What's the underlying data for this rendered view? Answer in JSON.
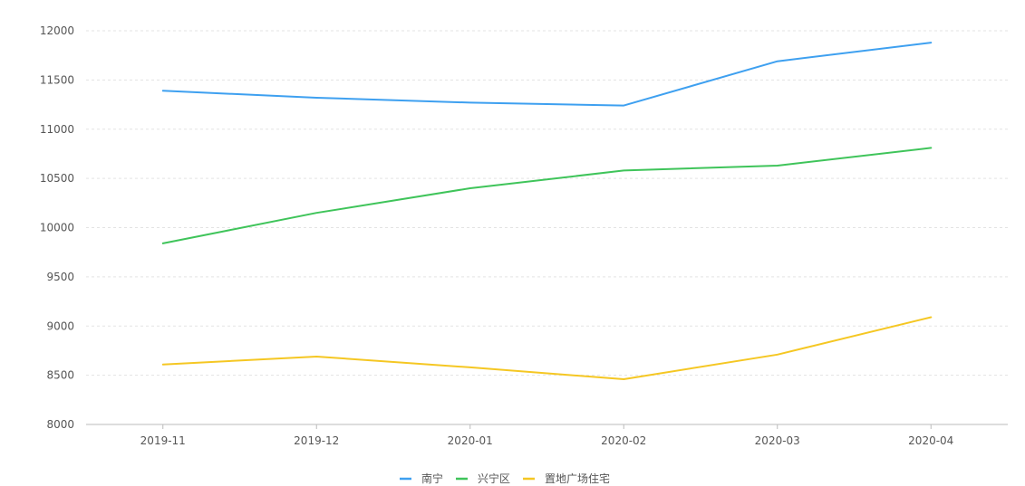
{
  "chart_data": {
    "type": "line",
    "categories": [
      "2019-11",
      "2019-12",
      "2020-01",
      "2020-02",
      "2020-03",
      "2020-04"
    ],
    "yticks": [
      "12000",
      "11500",
      "11000",
      "10500",
      "10000",
      "9500",
      "9000",
      "8500",
      "8000"
    ],
    "ylim": [
      8000,
      12000
    ],
    "grid": true,
    "legend_position": "bottom-center",
    "series": [
      {
        "name": "南宁",
        "color": "#3ea0f0",
        "values": [
          11390,
          11320,
          11270,
          11240,
          11690,
          11880
        ]
      },
      {
        "name": "兴宁区",
        "color": "#3fc45a",
        "values": [
          9840,
          10150,
          10400,
          10580,
          10630,
          10810
        ]
      },
      {
        "name": "置地广场住宅",
        "color": "#f5c723",
        "values": [
          8610,
          8690,
          8580,
          8460,
          8710,
          9090
        ]
      }
    ]
  }
}
